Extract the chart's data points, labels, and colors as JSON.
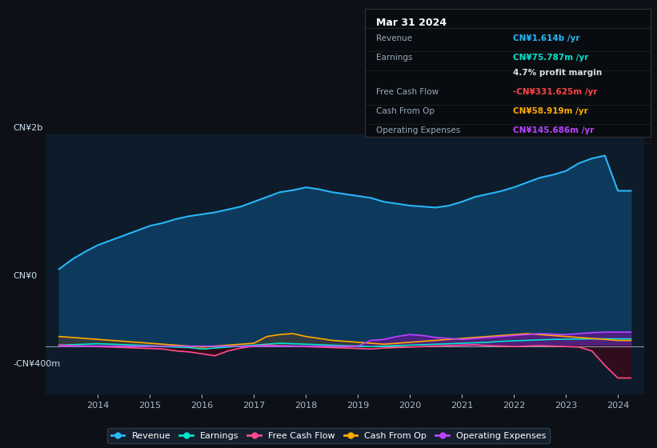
{
  "bg_color": "#0d1117",
  "plot_bg_color": "#0d1b2a",
  "title_box_date": "Mar 31 2024",
  "ylabel_top": "CN¥2b",
  "ylabel_zero": "CN¥0",
  "ylabel_bottom": "-CN¥400m",
  "xlim": [
    2013.0,
    2024.5
  ],
  "ylim": [
    -500000000,
    2200000000
  ],
  "years": [
    2013.25,
    2013.5,
    2013.75,
    2014.0,
    2014.25,
    2014.5,
    2014.75,
    2015.0,
    2015.25,
    2015.5,
    2015.75,
    2016.0,
    2016.25,
    2016.5,
    2016.75,
    2017.0,
    2017.25,
    2017.5,
    2017.75,
    2018.0,
    2018.25,
    2018.5,
    2018.75,
    2019.0,
    2019.25,
    2019.5,
    2019.75,
    2020.0,
    2020.25,
    2020.5,
    2020.75,
    2021.0,
    2021.25,
    2021.5,
    2021.75,
    2022.0,
    2022.25,
    2022.5,
    2022.75,
    2023.0,
    2023.25,
    2023.5,
    2023.75,
    2024.0,
    2024.25
  ],
  "revenue": [
    800000000,
    900000000,
    980000000,
    1050000000,
    1100000000,
    1150000000,
    1200000000,
    1250000000,
    1280000000,
    1320000000,
    1350000000,
    1370000000,
    1390000000,
    1420000000,
    1450000000,
    1500000000,
    1550000000,
    1600000000,
    1620000000,
    1650000000,
    1630000000,
    1600000000,
    1580000000,
    1560000000,
    1540000000,
    1500000000,
    1480000000,
    1460000000,
    1450000000,
    1440000000,
    1460000000,
    1500000000,
    1550000000,
    1580000000,
    1610000000,
    1650000000,
    1700000000,
    1750000000,
    1780000000,
    1820000000,
    1900000000,
    1950000000,
    1980000000,
    1614000000,
    1614000000
  ],
  "earnings": [
    10000000,
    15000000,
    20000000,
    25000000,
    20000000,
    15000000,
    10000000,
    5000000,
    -5000000,
    -10000000,
    -15000000,
    -30000000,
    -20000000,
    -10000000,
    0,
    10000000,
    20000000,
    30000000,
    25000000,
    20000000,
    15000000,
    10000000,
    5000000,
    0,
    -5000000,
    0,
    5000000,
    10000000,
    15000000,
    20000000,
    25000000,
    30000000,
    35000000,
    40000000,
    50000000,
    55000000,
    60000000,
    65000000,
    70000000,
    72000000,
    74000000,
    75000000,
    76000000,
    75787000,
    75787000
  ],
  "free_cash_flow": [
    10000000,
    5000000,
    0,
    -5000000,
    -10000000,
    -15000000,
    -20000000,
    -25000000,
    -30000000,
    -50000000,
    -60000000,
    -80000000,
    -100000000,
    -50000000,
    -20000000,
    0,
    10000000,
    5000000,
    0,
    -5000000,
    -10000000,
    -15000000,
    -20000000,
    -25000000,
    -30000000,
    -20000000,
    -15000000,
    -10000000,
    -5000000,
    0,
    5000000,
    10000000,
    15000000,
    5000000,
    0,
    -5000000,
    0,
    5000000,
    0,
    -5000000,
    -10000000,
    -50000000,
    -200000000,
    -331625000,
    -331625000
  ],
  "cash_from_op": [
    100000000,
    90000000,
    80000000,
    70000000,
    60000000,
    50000000,
    40000000,
    30000000,
    20000000,
    10000000,
    0,
    -10000000,
    0,
    10000000,
    20000000,
    30000000,
    100000000,
    120000000,
    130000000,
    100000000,
    80000000,
    60000000,
    50000000,
    40000000,
    30000000,
    20000000,
    30000000,
    40000000,
    50000000,
    60000000,
    70000000,
    80000000,
    90000000,
    100000000,
    110000000,
    120000000,
    130000000,
    120000000,
    110000000,
    100000000,
    90000000,
    80000000,
    70000000,
    58919000,
    58919000
  ],
  "op_expenses": [
    0,
    0,
    0,
    0,
    0,
    0,
    0,
    0,
    0,
    0,
    0,
    0,
    0,
    0,
    0,
    0,
    0,
    0,
    0,
    0,
    0,
    0,
    0,
    0,
    60000000,
    70000000,
    100000000,
    120000000,
    110000000,
    90000000,
    80000000,
    70000000,
    80000000,
    90000000,
    100000000,
    110000000,
    120000000,
    130000000,
    125000000,
    120000000,
    130000000,
    140000000,
    145000000,
    145686000,
    145686000
  ],
  "revenue_color": "#29b6f6",
  "revenue_fill": "#0d3a5c",
  "earnings_color": "#00e5cc",
  "fcf_color": "#ff4c8b",
  "cash_op_color": "#ffaa00",
  "cash_op_fill": "#3a3a3a",
  "op_exp_color": "#bb44ff",
  "op_exp_fill": "#5a1a8a",
  "legend_bg": "#151f2e",
  "legend_border": "#2a3a4a",
  "grid_color": "#1e3050",
  "zero_line_color": "#8899aa",
  "xticks": [
    2014,
    2015,
    2016,
    2017,
    2018,
    2019,
    2020,
    2021,
    2022,
    2023,
    2024
  ],
  "box_rows": [
    {
      "label": "Revenue",
      "value": "CN¥1.614b /yr",
      "value_color": "#29b6f6"
    },
    {
      "label": "Earnings",
      "value": "CN¥75.787m /yr",
      "value_color": "#00e5cc"
    },
    {
      "label": "",
      "value": "4.7% profit margin",
      "value_color": "#dddddd"
    },
    {
      "label": "Free Cash Flow",
      "value": "-CN¥331.625m /yr",
      "value_color": "#ff4444"
    },
    {
      "label": "Cash From Op",
      "value": "CN¥58.919m /yr",
      "value_color": "#ffaa00"
    },
    {
      "label": "Operating Expenses",
      "value": "CN¥145.686m /yr",
      "value_color": "#bb44ff"
    }
  ]
}
